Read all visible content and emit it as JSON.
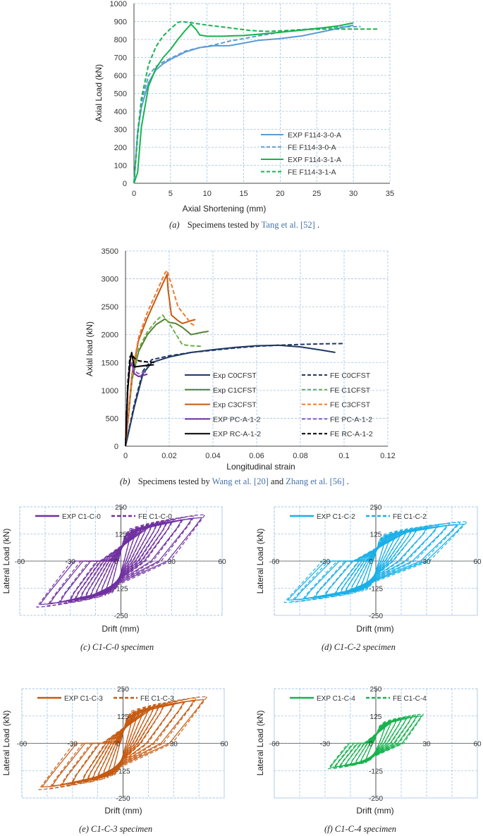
{
  "captions": {
    "a": {
      "label": "(a)",
      "text": "Specimens tested by ",
      "ref": "Tang et al. [52]",
      "end": "."
    },
    "b": {
      "label": "(b)",
      "text": "Specimens tested by ",
      "ref1": "Wang et al. [20]",
      "mid": " and ",
      "ref2": "Zhang et al. [56]",
      "end": "."
    },
    "c": "(c) C1-C-0 specimen",
    "d": "(d) C1-C-2 specimen",
    "e": "(e) C1-C-3 specimen",
    "f": "(f) C1-C-4 specimen"
  },
  "chart_data": [
    {
      "id": "a",
      "type": "line",
      "title": "",
      "xlabel": "Axial Shortening (mm)",
      "ylabel": "Axial Load (kN)",
      "xlim": [
        0,
        35
      ],
      "ylim": [
        0,
        1000
      ],
      "xticks": [
        "0",
        "5",
        "10",
        "15",
        "20",
        "25",
        "30",
        "35"
      ],
      "yticks": [
        "0",
        "100",
        "200",
        "300",
        "400",
        "500",
        "600",
        "700",
        "800",
        "900",
        "1000"
      ],
      "legend_position": "bottom-right",
      "series": [
        {
          "name": "EXP F114-3-0-A",
          "color": "#5b9bd5",
          "dash": "solid",
          "x": [
            0,
            0.5,
            1,
            2,
            3,
            4,
            5,
            7,
            9,
            11,
            13,
            15,
            17,
            20,
            23,
            26,
            30
          ],
          "y": [
            0,
            280,
            420,
            560,
            630,
            665,
            690,
            730,
            755,
            765,
            765,
            780,
            795,
            805,
            820,
            845,
            880
          ]
        },
        {
          "name": "FE F114-3-0-A",
          "color": "#5b9bd5",
          "dash": "dashed",
          "x": [
            0,
            0.5,
            1,
            2,
            3,
            4,
            5,
            7,
            9,
            11,
            13,
            15,
            17,
            20,
            23,
            26,
            29,
            31
          ],
          "y": [
            0,
            290,
            450,
            600,
            650,
            675,
            695,
            735,
            755,
            770,
            790,
            805,
            820,
            840,
            855,
            865,
            870,
            872
          ]
        },
        {
          "name": "EXP F114-3-1-A",
          "color": "#17b34f",
          "dash": "solid",
          "x": [
            0,
            0.5,
            1,
            2,
            3,
            4,
            5,
            6,
            7,
            7.8,
            8.5,
            9,
            10,
            12,
            15,
            18,
            20,
            23,
            26,
            28,
            30
          ],
          "y": [
            0,
            60,
            310,
            540,
            640,
            700,
            745,
            800,
            850,
            885,
            855,
            825,
            818,
            818,
            822,
            832,
            840,
            852,
            866,
            876,
            892
          ]
        },
        {
          "name": "FE F114-3-1-A",
          "color": "#17b34f",
          "dash": "dashed",
          "x": [
            0,
            0.5,
            1,
            2,
            3,
            4,
            5,
            6,
            6.5,
            8,
            10,
            13,
            16,
            18,
            20,
            23,
            26,
            29,
            33.5
          ],
          "y": [
            0,
            260,
            470,
            660,
            760,
            820,
            860,
            895,
            900,
            892,
            880,
            865,
            850,
            845,
            848,
            855,
            858,
            858,
            858
          ]
        }
      ]
    },
    {
      "id": "b",
      "type": "line",
      "title": "",
      "xlabel": "Longitudinal strain",
      "ylabel": "Axial load (kN)",
      "xlim": [
        0,
        0.12
      ],
      "ylim": [
        0,
        3500
      ],
      "xticks": [
        "0",
        "0.02",
        "0.04",
        "0.06",
        "0.08",
        "0.1",
        "0.12"
      ],
      "yticks": [
        "0",
        "500",
        "1000",
        "1500",
        "2000",
        "2500",
        "3000",
        "3500"
      ],
      "legend_position": "bottom-right",
      "series": [
        {
          "name": "Exp C0CFST",
          "color": "#1f3864",
          "dash": "solid",
          "x": [
            0,
            0.004,
            0.008,
            0.012,
            0.02,
            0.03,
            0.04,
            0.05,
            0.06,
            0.07,
            0.08,
            0.09,
            0.096
          ],
          "y": [
            0,
            700,
            1300,
            1500,
            1600,
            1680,
            1730,
            1770,
            1800,
            1810,
            1780,
            1720,
            1680
          ]
        },
        {
          "name": "FE C0CFST",
          "color": "#1f3864",
          "dash": "dashed",
          "x": [
            0,
            0.004,
            0.008,
            0.012,
            0.02,
            0.03,
            0.04,
            0.05,
            0.06,
            0.07,
            0.08,
            0.09,
            0.1
          ],
          "y": [
            0,
            750,
            1350,
            1550,
            1620,
            1680,
            1720,
            1760,
            1790,
            1810,
            1825,
            1835,
            1840
          ]
        },
        {
          "name": "Exp C1CFST",
          "color": "#548235",
          "dash": "solid",
          "x": [
            0,
            0.003,
            0.006,
            0.01,
            0.014,
            0.018,
            0.02,
            0.023,
            0.026,
            0.03,
            0.035,
            0.038
          ],
          "y": [
            0,
            1200,
            1700,
            2000,
            2180,
            2280,
            2220,
            2200,
            2130,
            2000,
            2040,
            2060
          ]
        },
        {
          "name": "FE C1CFST",
          "color": "#70ad47",
          "dash": "dashed",
          "x": [
            0,
            0.003,
            0.006,
            0.01,
            0.014,
            0.017,
            0.02,
            0.024,
            0.026,
            0.03,
            0.035
          ],
          "y": [
            0,
            1250,
            1750,
            2050,
            2250,
            2350,
            2200,
            1950,
            1820,
            1800,
            1790
          ]
        },
        {
          "name": "Exp C3CFST",
          "color": "#c55a11",
          "dash": "solid",
          "x": [
            0,
            0.003,
            0.006,
            0.01,
            0.014,
            0.019,
            0.0195,
            0.021,
            0.024,
            0.026,
            0.03,
            0.032
          ],
          "y": [
            0,
            1300,
            1900,
            2300,
            2650,
            3080,
            2800,
            2350,
            2250,
            2200,
            2250,
            2270
          ]
        },
        {
          "name": "FE C3CFST",
          "color": "#ed7d31",
          "dash": "dashed",
          "x": [
            0,
            0.003,
            0.006,
            0.01,
            0.014,
            0.018,
            0.019,
            0.021,
            0.024,
            0.027,
            0.03,
            0.032
          ],
          "y": [
            0,
            1300,
            1950,
            2400,
            2750,
            3100,
            3150,
            2900,
            2500,
            2350,
            2200,
            2150
          ]
        },
        {
          "name": "EXP PC-A-1-2",
          "color": "#7030a0",
          "dash": "solid",
          "x": [
            0,
            0.001,
            0.002,
            0.003,
            0.004,
            0.006,
            0.008,
            0.01
          ],
          "y": [
            0,
            1000,
            1420,
            1480,
            1300,
            1250,
            1270,
            1290
          ]
        },
        {
          "name": "FE PC-A-1-2",
          "color": "#8e5cc8",
          "dash": "dashed",
          "x": [
            0,
            0.001,
            0.002,
            0.003,
            0.004,
            0.006,
            0.008,
            0.01
          ],
          "y": [
            0,
            1050,
            1450,
            1500,
            1350,
            1300,
            1320,
            1330
          ]
        },
        {
          "name": "EXP RC-A-1-2",
          "color": "#000000",
          "dash": "solid",
          "x": [
            0,
            0.001,
            0.002,
            0.0028,
            0.004,
            0.006,
            0.008,
            0.01,
            0.013
          ],
          "y": [
            0,
            1000,
            1500,
            1680,
            1420,
            1430,
            1440,
            1450,
            1460
          ]
        },
        {
          "name": "FE RC-A-1-2",
          "color": "#000000",
          "dash": "dashed",
          "x": [
            0,
            0.001,
            0.002,
            0.003,
            0.004,
            0.006,
            0.008,
            0.01,
            0.014
          ],
          "y": [
            0,
            1100,
            1600,
            1650,
            1580,
            1530,
            1520,
            1510,
            1500
          ]
        }
      ]
    },
    {
      "id": "c",
      "type": "line",
      "subtype": "hysteresis",
      "xlabel": "Drift (mm)",
      "ylabel": "Lateral Load (kN)",
      "xlim": [
        -60,
        60
      ],
      "ylim": [
        -250,
        250
      ],
      "xticks": [
        "-60",
        "-30",
        "0",
        "30",
        "60"
      ],
      "yticks": [
        "250",
        "125",
        "0",
        "-125",
        "-250"
      ],
      "legend_position": "top",
      "amplitudes_mm": [
        6,
        9,
        12,
        15,
        18,
        21,
        24,
        27,
        30,
        36,
        42,
        48
      ],
      "peak_load_kN": {
        "positive": 200,
        "negative": -200
      },
      "series": [
        {
          "name": "EXP C1-C-0",
          "color": "#7030a0",
          "dash": "solid"
        },
        {
          "name": "FE C1-C-0",
          "color": "#7030a0",
          "dash": "dashed"
        }
      ]
    },
    {
      "id": "d",
      "type": "line",
      "subtype": "hysteresis",
      "xlabel": "Drift (mm)",
      "ylabel": "Lateral Load (kN)",
      "xlim": [
        -60,
        60
      ],
      "ylim": [
        -250,
        250
      ],
      "xticks": [
        "-60",
        "-30",
        "0",
        "30",
        "60"
      ],
      "yticks": [
        "250",
        "125",
        "0",
        "-125",
        "-250"
      ],
      "legend_position": "top",
      "amplitudes_mm": [
        6,
        9,
        12,
        15,
        18,
        21,
        24,
        30,
        36,
        42,
        48,
        52
      ],
      "peak_load_kN": {
        "positive": 170,
        "negative": -180
      },
      "series": [
        {
          "name": "EXP C1-C-2",
          "color": "#1ab0e8",
          "dash": "solid"
        },
        {
          "name": "FE C1-C-2",
          "color": "#1ab0e8",
          "dash": "dashed"
        }
      ]
    },
    {
      "id": "e",
      "type": "line",
      "subtype": "hysteresis",
      "xlabel": "Drift (mm)",
      "ylabel": "Lateral Load (kN)",
      "xlim": [
        -60,
        60
      ],
      "ylim": [
        -250,
        250
      ],
      "xticks": [
        "-60",
        "-30",
        "0",
        "30",
        "60"
      ],
      "yticks": [
        "250",
        "125",
        "0",
        "-125",
        "-250"
      ],
      "legend_position": "top",
      "amplitudes_mm": [
        6,
        9,
        12,
        15,
        18,
        21,
        24,
        30,
        36,
        42,
        48
      ],
      "peak_load_kN": {
        "positive": 200,
        "negative": -200
      },
      "series": [
        {
          "name": "EXP C1-C-3",
          "color": "#c55a11",
          "dash": "solid"
        },
        {
          "name": "FE C1-C-3",
          "color": "#c55a11",
          "dash": "dashed"
        }
      ]
    },
    {
      "id": "f",
      "type": "line",
      "subtype": "hysteresis",
      "xlabel": "Drift (mm)",
      "ylabel": "Lateral Load (kN)",
      "xlim": [
        -60,
        60
      ],
      "ylim": [
        -250,
        250
      ],
      "xticks": [
        "-60",
        "-30",
        "0",
        "30",
        "60"
      ],
      "yticks": [
        "250",
        "125",
        "0",
        "-125",
        "-250"
      ],
      "legend_position": "top",
      "amplitudes_mm": [
        6,
        9,
        12,
        15,
        18,
        21,
        24,
        27
      ],
      "peak_load_kN": {
        "positive": 125,
        "negative": -110
      },
      "series": [
        {
          "name": "EXP C1-C-4",
          "color": "#17b34f",
          "dash": "solid"
        },
        {
          "name": "FE C1-C-4",
          "color": "#17b34f",
          "dash": "dashed"
        }
      ]
    }
  ]
}
